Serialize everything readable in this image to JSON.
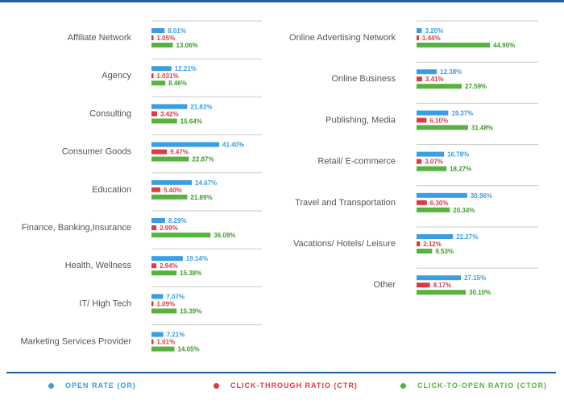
{
  "chart_data": {
    "type": "bar",
    "orientation": "horizontal",
    "legend_position": "bottom",
    "grid": false,
    "series": [
      {
        "name": "OPEN RATE (OR)",
        "color": "#3a9ee2"
      },
      {
        "name": "CLICK-THROUGH RATIO (CTR)",
        "color": "#e03a41"
      },
      {
        "name": "CLICK-TO-OPEN RATIO (CTOR)",
        "color": "#57b33e"
      }
    ],
    "panels": [
      {
        "categories": [
          {
            "label": "Affiliate Network",
            "values": [
              8.01,
              1.05,
              13.06
            ],
            "labels": [
              "8.01%",
              "1.05%",
              "13.06%"
            ]
          },
          {
            "label": "Agency",
            "values": [
              12.21,
              1.031,
              8.46
            ],
            "labels": [
              "12.21%",
              "1.031%",
              "8.46%"
            ]
          },
          {
            "label": "Consulting",
            "values": [
              21.83,
              3.42,
              15.64
            ],
            "labels": [
              "21.83%",
              "3.42%",
              "15.64%"
            ]
          },
          {
            "label": "Consumer Goods",
            "values": [
              41.4,
              9.47,
              22.87
            ],
            "labels": [
              "41.40%",
              "9.47%",
              "22.87%"
            ]
          },
          {
            "label": "Education",
            "values": [
              24.67,
              5.4,
              21.89
            ],
            "labels": [
              "24.67%",
              "5.40%",
              "21.89%"
            ]
          },
          {
            "label": "Finance, Banking,Insurance",
            "values": [
              8.29,
              2.99,
              36.09
            ],
            "labels": [
              "8.29%",
              "2.99%",
              "36.09%"
            ]
          },
          {
            "label": "Health, Wellness",
            "values": [
              19.14,
              2.94,
              15.38
            ],
            "labels": [
              "19.14%",
              "2.94%",
              "15.38%"
            ]
          },
          {
            "label": "IT/ High Tech",
            "values": [
              7.07,
              1.09,
              15.39
            ],
            "labels": [
              "7.07%",
              "1.09%",
              "15.39%"
            ]
          },
          {
            "label": "Marketing Services Provider",
            "values": [
              7.21,
              1.01,
              14.05
            ],
            "labels": [
              "7.21%",
              "1.01%",
              "14.05%"
            ]
          }
        ]
      },
      {
        "categories": [
          {
            "label": "Online Advertising Network",
            "values": [
              3.2,
              1.44,
              44.9
            ],
            "labels": [
              "3.20%",
              "1.44%",
              "44.90%"
            ]
          },
          {
            "label": "Online Business",
            "values": [
              12.38,
              3.41,
              27.59
            ],
            "labels": [
              "12.38%",
              "3.41%",
              "27.59%"
            ]
          },
          {
            "label": "Publishing, Media",
            "values": [
              19.37,
              6.1,
              31.48
            ],
            "labels": [
              "19.37%",
              "6.10%",
              "31.48%"
            ]
          },
          {
            "label": "Retail/ E-commerce",
            "values": [
              16.78,
              3.07,
              18.27
            ],
            "labels": [
              "16.78%",
              "3.07%",
              "18.27%"
            ]
          },
          {
            "label": "Travel and Transportation",
            "values": [
              30.96,
              6.3,
              20.34
            ],
            "labels": [
              "30.96%",
              "6.30%",
              "20.34%"
            ]
          },
          {
            "label": "Vacations/ Hotels/ Leisure",
            "values": [
              22.27,
              2.12,
              9.53
            ],
            "labels": [
              "22.27%",
              "2.12%",
              "9.53%"
            ]
          },
          {
            "label": "Other",
            "values": [
              27.15,
              8.17,
              30.1
            ],
            "labels": [
              "27.15%",
              "8.17%",
              "30.10%"
            ]
          }
        ]
      }
    ]
  }
}
